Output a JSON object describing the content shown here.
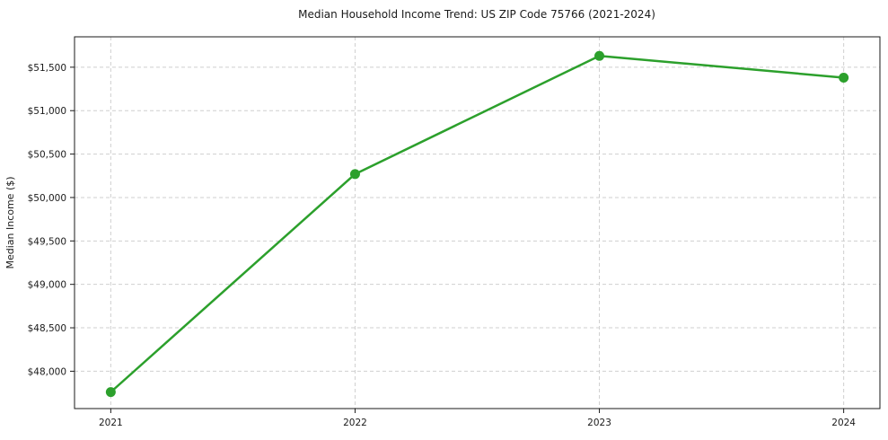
{
  "chart": {
    "title": "Median Household Income Trend: US ZIP Code 75766 (2021-2024)",
    "ylabel": "Median Income ($)",
    "xlabel": ""
  },
  "chart_data": {
    "type": "line",
    "title": "Median Household Income Trend: US ZIP Code 75766 (2021-2024)",
    "xlabel": "",
    "ylabel": "Median Income ($)",
    "categories": [
      "2021",
      "2022",
      "2023",
      "2024"
    ],
    "series": [
      {
        "name": "Median Household Income",
        "values": [
          47760,
          50270,
          51630,
          51380
        ]
      }
    ],
    "ylim": [
      47570,
      51850
    ],
    "yticks": [
      48000,
      48500,
      49000,
      49500,
      50000,
      50500,
      51000,
      51500
    ],
    "ytick_labels": [
      "$48,000",
      "$48,500",
      "$49,000",
      "$49,500",
      "$50,000",
      "$50,500",
      "$51,000",
      "$51,500"
    ],
    "grid": true,
    "grid_style": "dashed",
    "legend": false,
    "colors": {
      "line": "#2ca02c",
      "marker": "#2ca02c",
      "grid": "#cfcfcf",
      "frame": "#1a1a1a",
      "text": "#1a1a1a",
      "background": "#ffffff"
    }
  }
}
